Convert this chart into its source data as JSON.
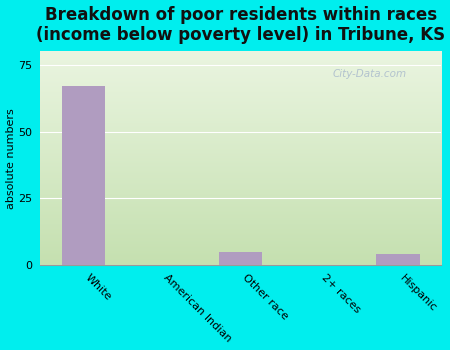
{
  "title": "Breakdown of poor residents within races\n(income below poverty level) in Tribune, KS",
  "categories": [
    "White",
    "American Indian",
    "Other race",
    "2+ races",
    "Hispanic"
  ],
  "values": [
    67,
    0,
    5,
    0,
    4
  ],
  "bar_color": "#b09cc0",
  "ylabel": "absolute numbers",
  "ylim": [
    0,
    80
  ],
  "yticks": [
    0,
    25,
    50,
    75
  ],
  "grad_color_bottom": "#c5e0b0",
  "grad_color_top": "#eaf5e0",
  "outer_bg": "#00eeee",
  "title_fontsize": 12,
  "axis_fontsize": 8,
  "watermark": "City-Data.com"
}
